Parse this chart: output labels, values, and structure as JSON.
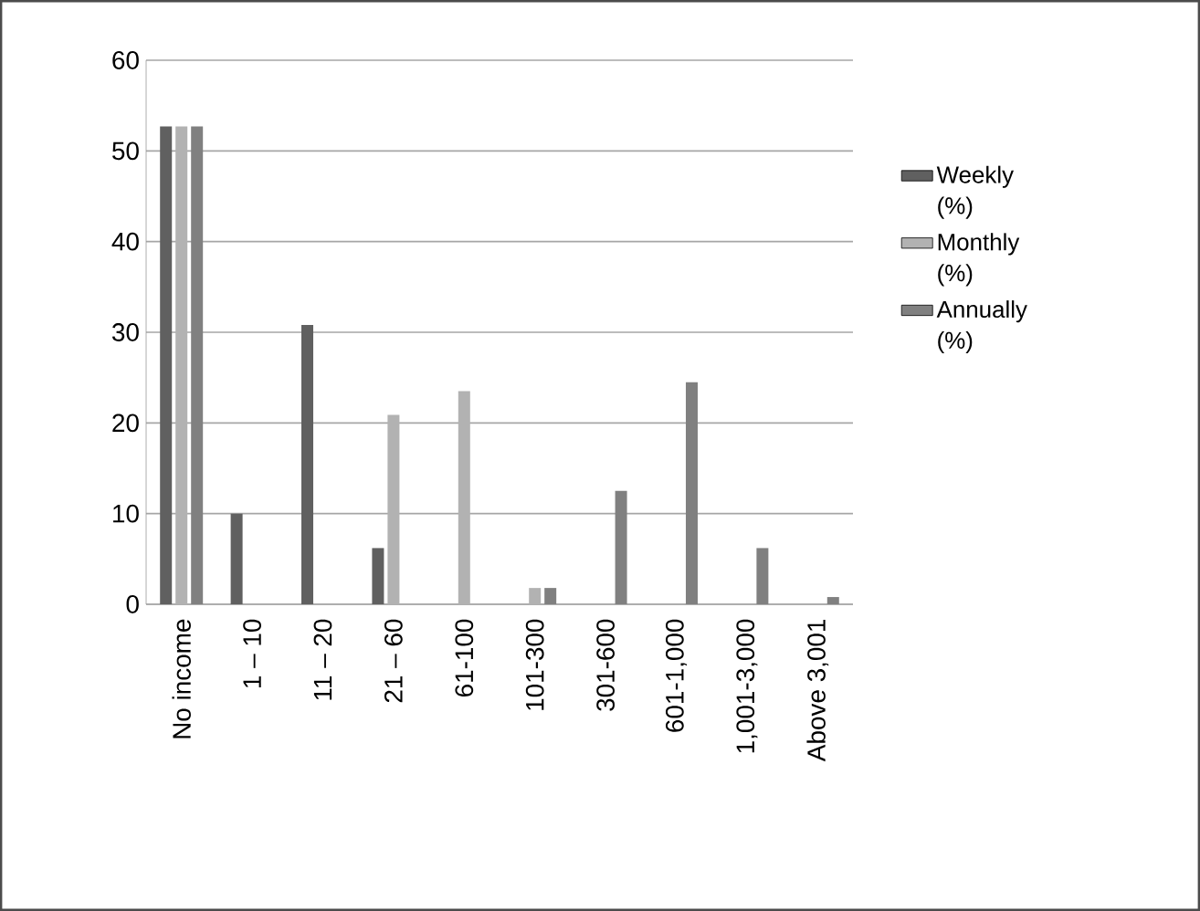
{
  "chart_data": {
    "type": "bar",
    "categories": [
      "No income",
      "1 – 10",
      "11 – 20",
      "21 – 60",
      "61-100",
      "101-300",
      "301-600",
      "601-1,000",
      "1,001-3,000",
      "Above 3,001"
    ],
    "series": [
      {
        "name": "Weekly (%)",
        "color": "#606060",
        "values": [
          52.7,
          10.0,
          30.8,
          6.2,
          null,
          null,
          null,
          null,
          null,
          null
        ]
      },
      {
        "name": "Monthly (%)",
        "color": "#b2b2b2",
        "values": [
          52.7,
          null,
          null,
          20.9,
          23.5,
          1.8,
          null,
          null,
          null,
          null
        ]
      },
      {
        "name": "Annually (%)",
        "color": "#808080",
        "values": [
          52.7,
          null,
          null,
          null,
          null,
          1.8,
          12.5,
          24.5,
          6.2,
          0.8
        ]
      }
    ],
    "ylim": [
      0,
      60
    ],
    "yticks": [
      0,
      10,
      20,
      30,
      40,
      50,
      60
    ],
    "grid": "y",
    "legend": "right"
  }
}
